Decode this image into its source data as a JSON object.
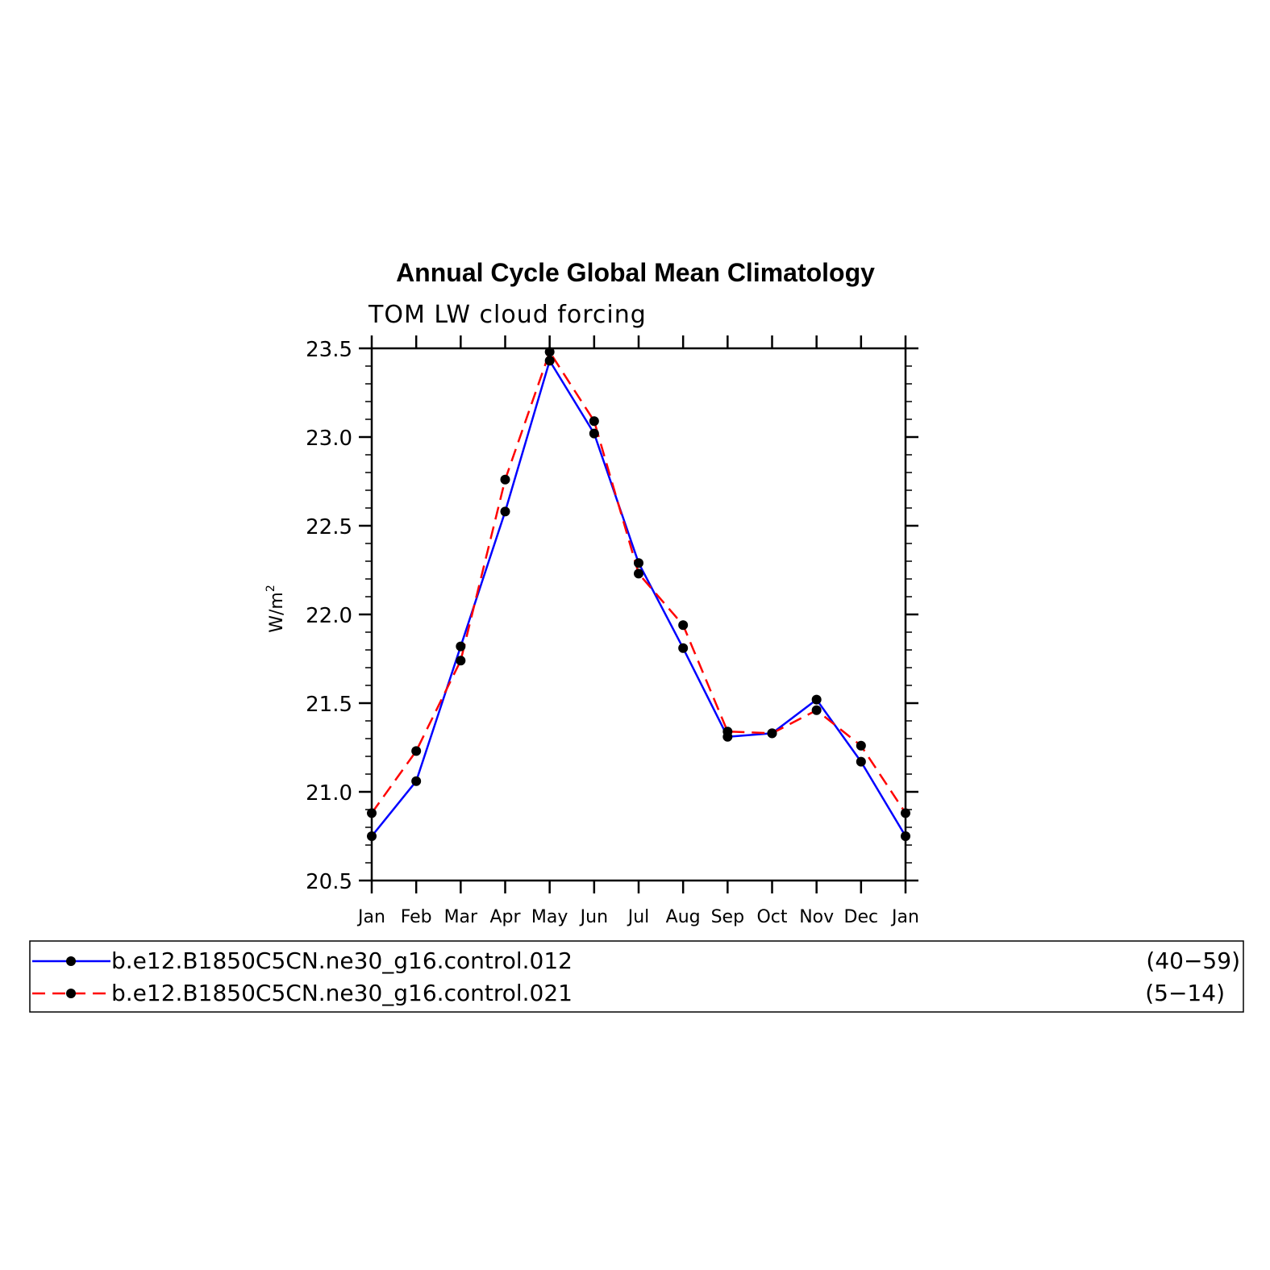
{
  "chart_data": {
    "type": "line",
    "title": "Annual Cycle Global Mean Climatology",
    "subtitle": "TOM LW cloud forcing",
    "ylabel": "W/m",
    "ylabel_sup": "2",
    "ylim": [
      20.5,
      23.5
    ],
    "yticks": [
      "20.5",
      "21.0",
      "21.5",
      "22.0",
      "22.5",
      "23.0",
      "23.5"
    ],
    "ytick_values": [
      20.5,
      21.0,
      21.5,
      22.0,
      22.5,
      23.0,
      23.5
    ],
    "categories": [
      "Jan",
      "Feb",
      "Mar",
      "Apr",
      "May",
      "Jun",
      "Jul",
      "Aug",
      "Sep",
      "Oct",
      "Nov",
      "Dec",
      "Jan"
    ],
    "series": [
      {
        "name": "b.e12.B1850C5CN.ne30_g16.control.012",
        "years": "(40−59)",
        "color": "#0000ff",
        "dash": "solid",
        "values": [
          20.75,
          21.06,
          21.82,
          22.58,
          23.43,
          23.02,
          22.29,
          21.81,
          21.31,
          21.33,
          21.52,
          21.17,
          20.75
        ]
      },
      {
        "name": "b.e12.B1850C5CN.ne30_g16.control.021",
        "years": "(5−14)",
        "color": "#ff0000",
        "dash": "dashed",
        "values": [
          20.88,
          21.23,
          21.74,
          22.76,
          23.48,
          23.09,
          22.23,
          21.94,
          21.34,
          21.33,
          21.46,
          21.26,
          20.88
        ]
      }
    ],
    "marker": "filled-circle",
    "marker_color": "#000000",
    "grid": false,
    "legend_placement": "bottom"
  }
}
